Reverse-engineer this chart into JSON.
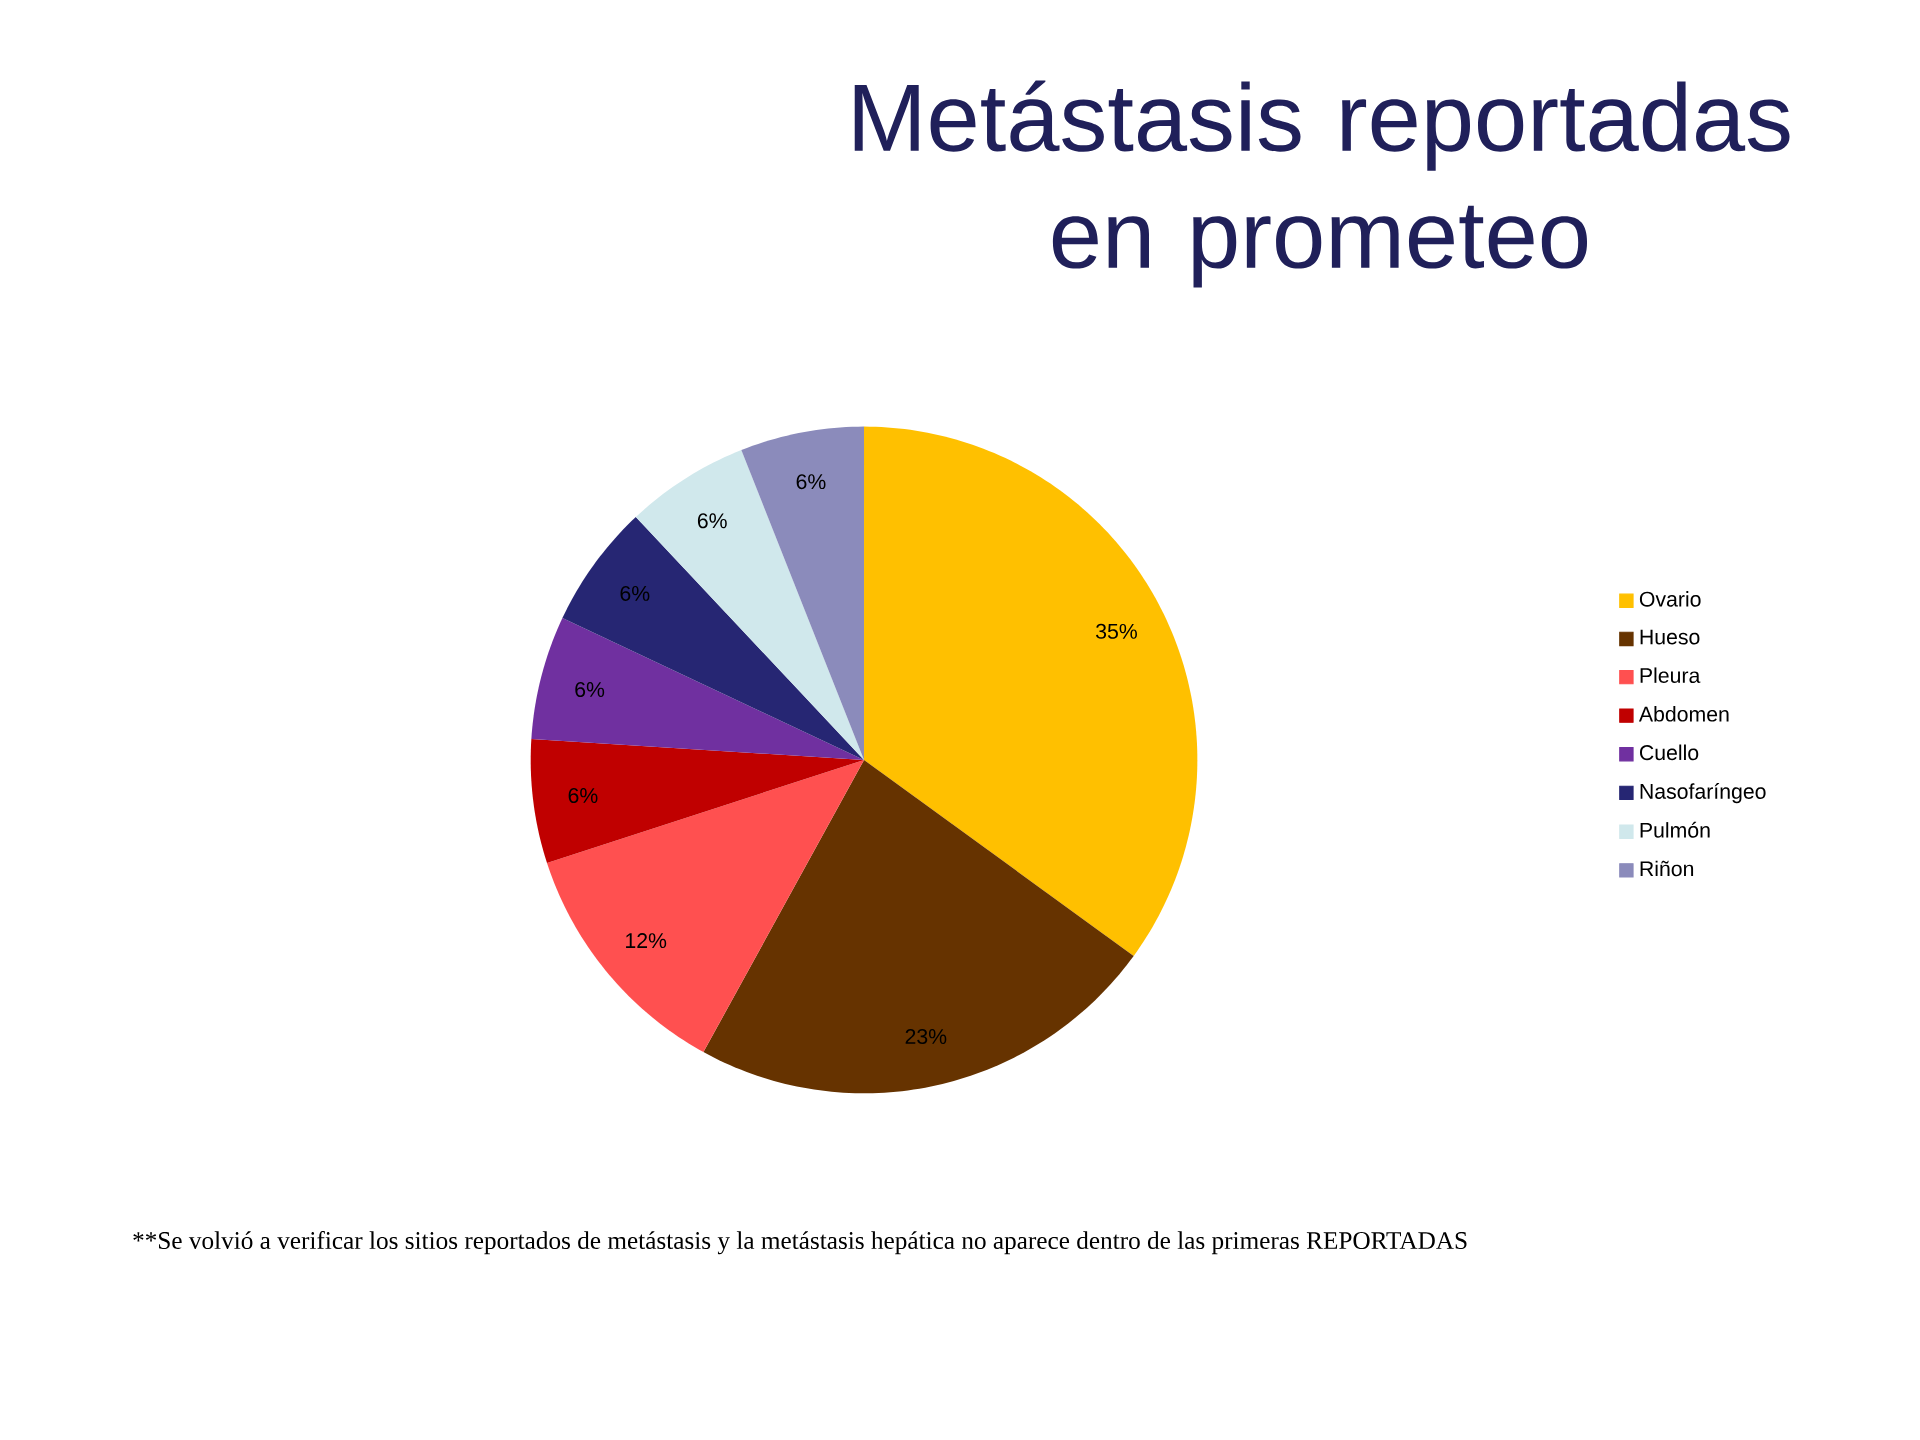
{
  "chart_data": {
    "type": "pie",
    "title": "Metástasis reportadas en prometeo",
    "categories": [
      "Ovario",
      "Hueso",
      "Pleura",
      "Abdomen",
      "Cuello",
      "Nasofaríngeo",
      "Pulmón",
      "Riñon"
    ],
    "values": [
      35,
      23,
      12,
      6,
      6,
      6,
      6,
      6
    ],
    "colors": [
      "#ffc000",
      "#663300",
      "#ff5050",
      "#c00000",
      "#7030a0",
      "#262673",
      "#d0e8ec",
      "#8b8bbb"
    ],
    "data_labels": true,
    "value_labels": [
      "35%",
      "23%",
      "12%",
      "6%",
      "6%",
      "6%",
      "6%",
      "6%"
    ],
    "legend": "right",
    "annotations": [
      "**Se volvió a verificar los sitios reportados de metástasis y  la  metástasis hepática no aparece dentro de las primeras REPORTADAS"
    ]
  }
}
